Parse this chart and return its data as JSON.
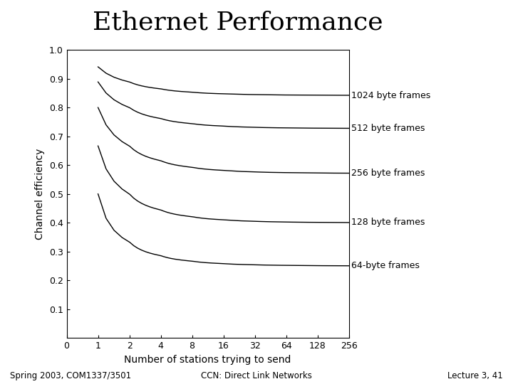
{
  "title": "Ethernet Performance",
  "xlabel": "Number of stations trying to send",
  "ylabel": "Channel efficiency",
  "x_ticks": [
    0,
    1,
    2,
    4,
    8,
    16,
    32,
    64,
    128,
    256
  ],
  "y_ticks": [
    0.1,
    0.2,
    0.3,
    0.4,
    0.5,
    0.6,
    0.7,
    0.8,
    0.9,
    1.0
  ],
  "frame_sizes": [
    64,
    128,
    256,
    512,
    1024
  ],
  "frame_labels": [
    "64-byte frames",
    "128 byte frames",
    "256 byte frames",
    "512 byte frames",
    "1024 byte frames"
  ],
  "background_color": "#ffffff",
  "line_color": "#000000",
  "title_fontsize": 26,
  "axis_fontsize": 10,
  "tick_fontsize": 9,
  "label_fontsize": 9,
  "footer_left": "Spring 2003, COM1337/3501",
  "footer_center": "CCN: Direct Link Networks",
  "footer_right": "Lecture 3, 41"
}
